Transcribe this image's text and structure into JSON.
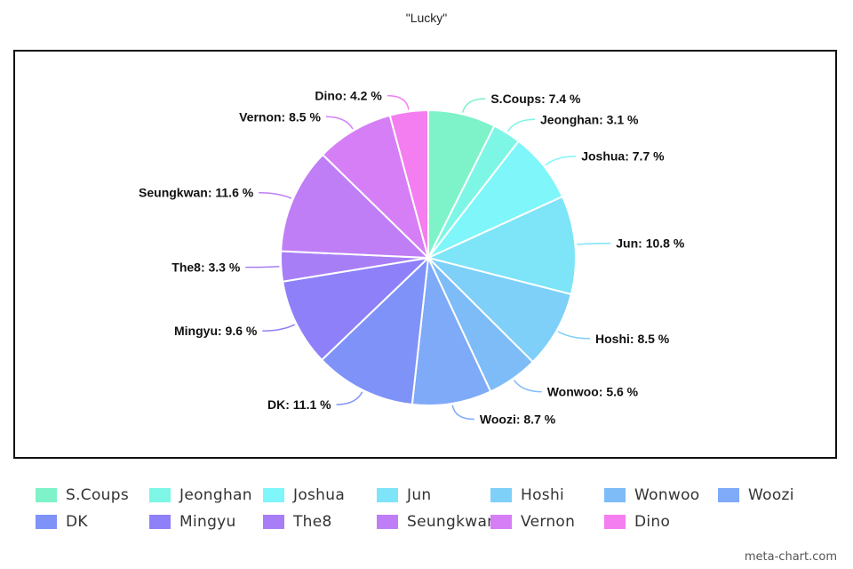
{
  "chart_data": {
    "type": "pie",
    "title": "\"Lucky\"",
    "slices": [
      {
        "label": "S.Coups",
        "value": 7.4,
        "color": "#7ef2c8"
      },
      {
        "label": "Jeonghan",
        "value": 3.1,
        "color": "#7ef6e6"
      },
      {
        "label": "Joshua",
        "value": 7.7,
        "color": "#7ef6fa"
      },
      {
        "label": "Jun",
        "value": 10.8,
        "color": "#7ee4f8"
      },
      {
        "label": "Hoshi",
        "value": 8.5,
        "color": "#7ed0f8"
      },
      {
        "label": "Wonwoo",
        "value": 5.6,
        "color": "#7ebcf8"
      },
      {
        "label": "Woozi",
        "value": 8.7,
        "color": "#7eaaf8"
      },
      {
        "label": "DK",
        "value": 11.1,
        "color": "#7e92f8"
      },
      {
        "label": "Mingyu",
        "value": 9.6,
        "color": "#8e80f8"
      },
      {
        "label": "The8",
        "value": 3.3,
        "color": "#a87ef6"
      },
      {
        "label": "Seungkwan",
        "value": 11.6,
        "color": "#c07ef6"
      },
      {
        "label": "Vernon",
        "value": 8.5,
        "color": "#d67ef6"
      },
      {
        "label": "Dino",
        "value": 4.2,
        "color": "#f47ef0"
      }
    ],
    "label_suffix": " %",
    "legend_position": "bottom"
  },
  "credit": "meta-chart.com"
}
